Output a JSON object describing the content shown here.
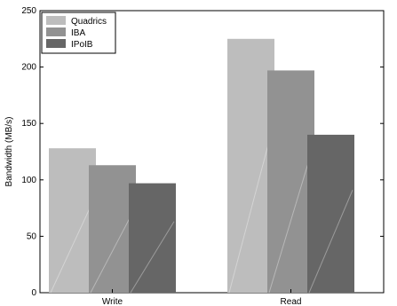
{
  "chart_data": {
    "type": "bar",
    "categories": [
      "Write",
      "Read"
    ],
    "series": [
      {
        "name": "Quadrics",
        "values": [
          128,
          225
        ],
        "color": "#bdbdbd"
      },
      {
        "name": "IBA",
        "values": [
          113,
          197
        ],
        "color": "#929292"
      },
      {
        "name": "IPoIB",
        "values": [
          97,
          140
        ],
        "color": "#666666"
      }
    ],
    "ylabel": "Bandwidth (MB/s)",
    "xlabel": "",
    "ylim": [
      0,
      250
    ],
    "yticks": [
      0,
      50,
      100,
      150,
      200,
      250
    ],
    "grid": false,
    "legend_position": "top-left"
  }
}
